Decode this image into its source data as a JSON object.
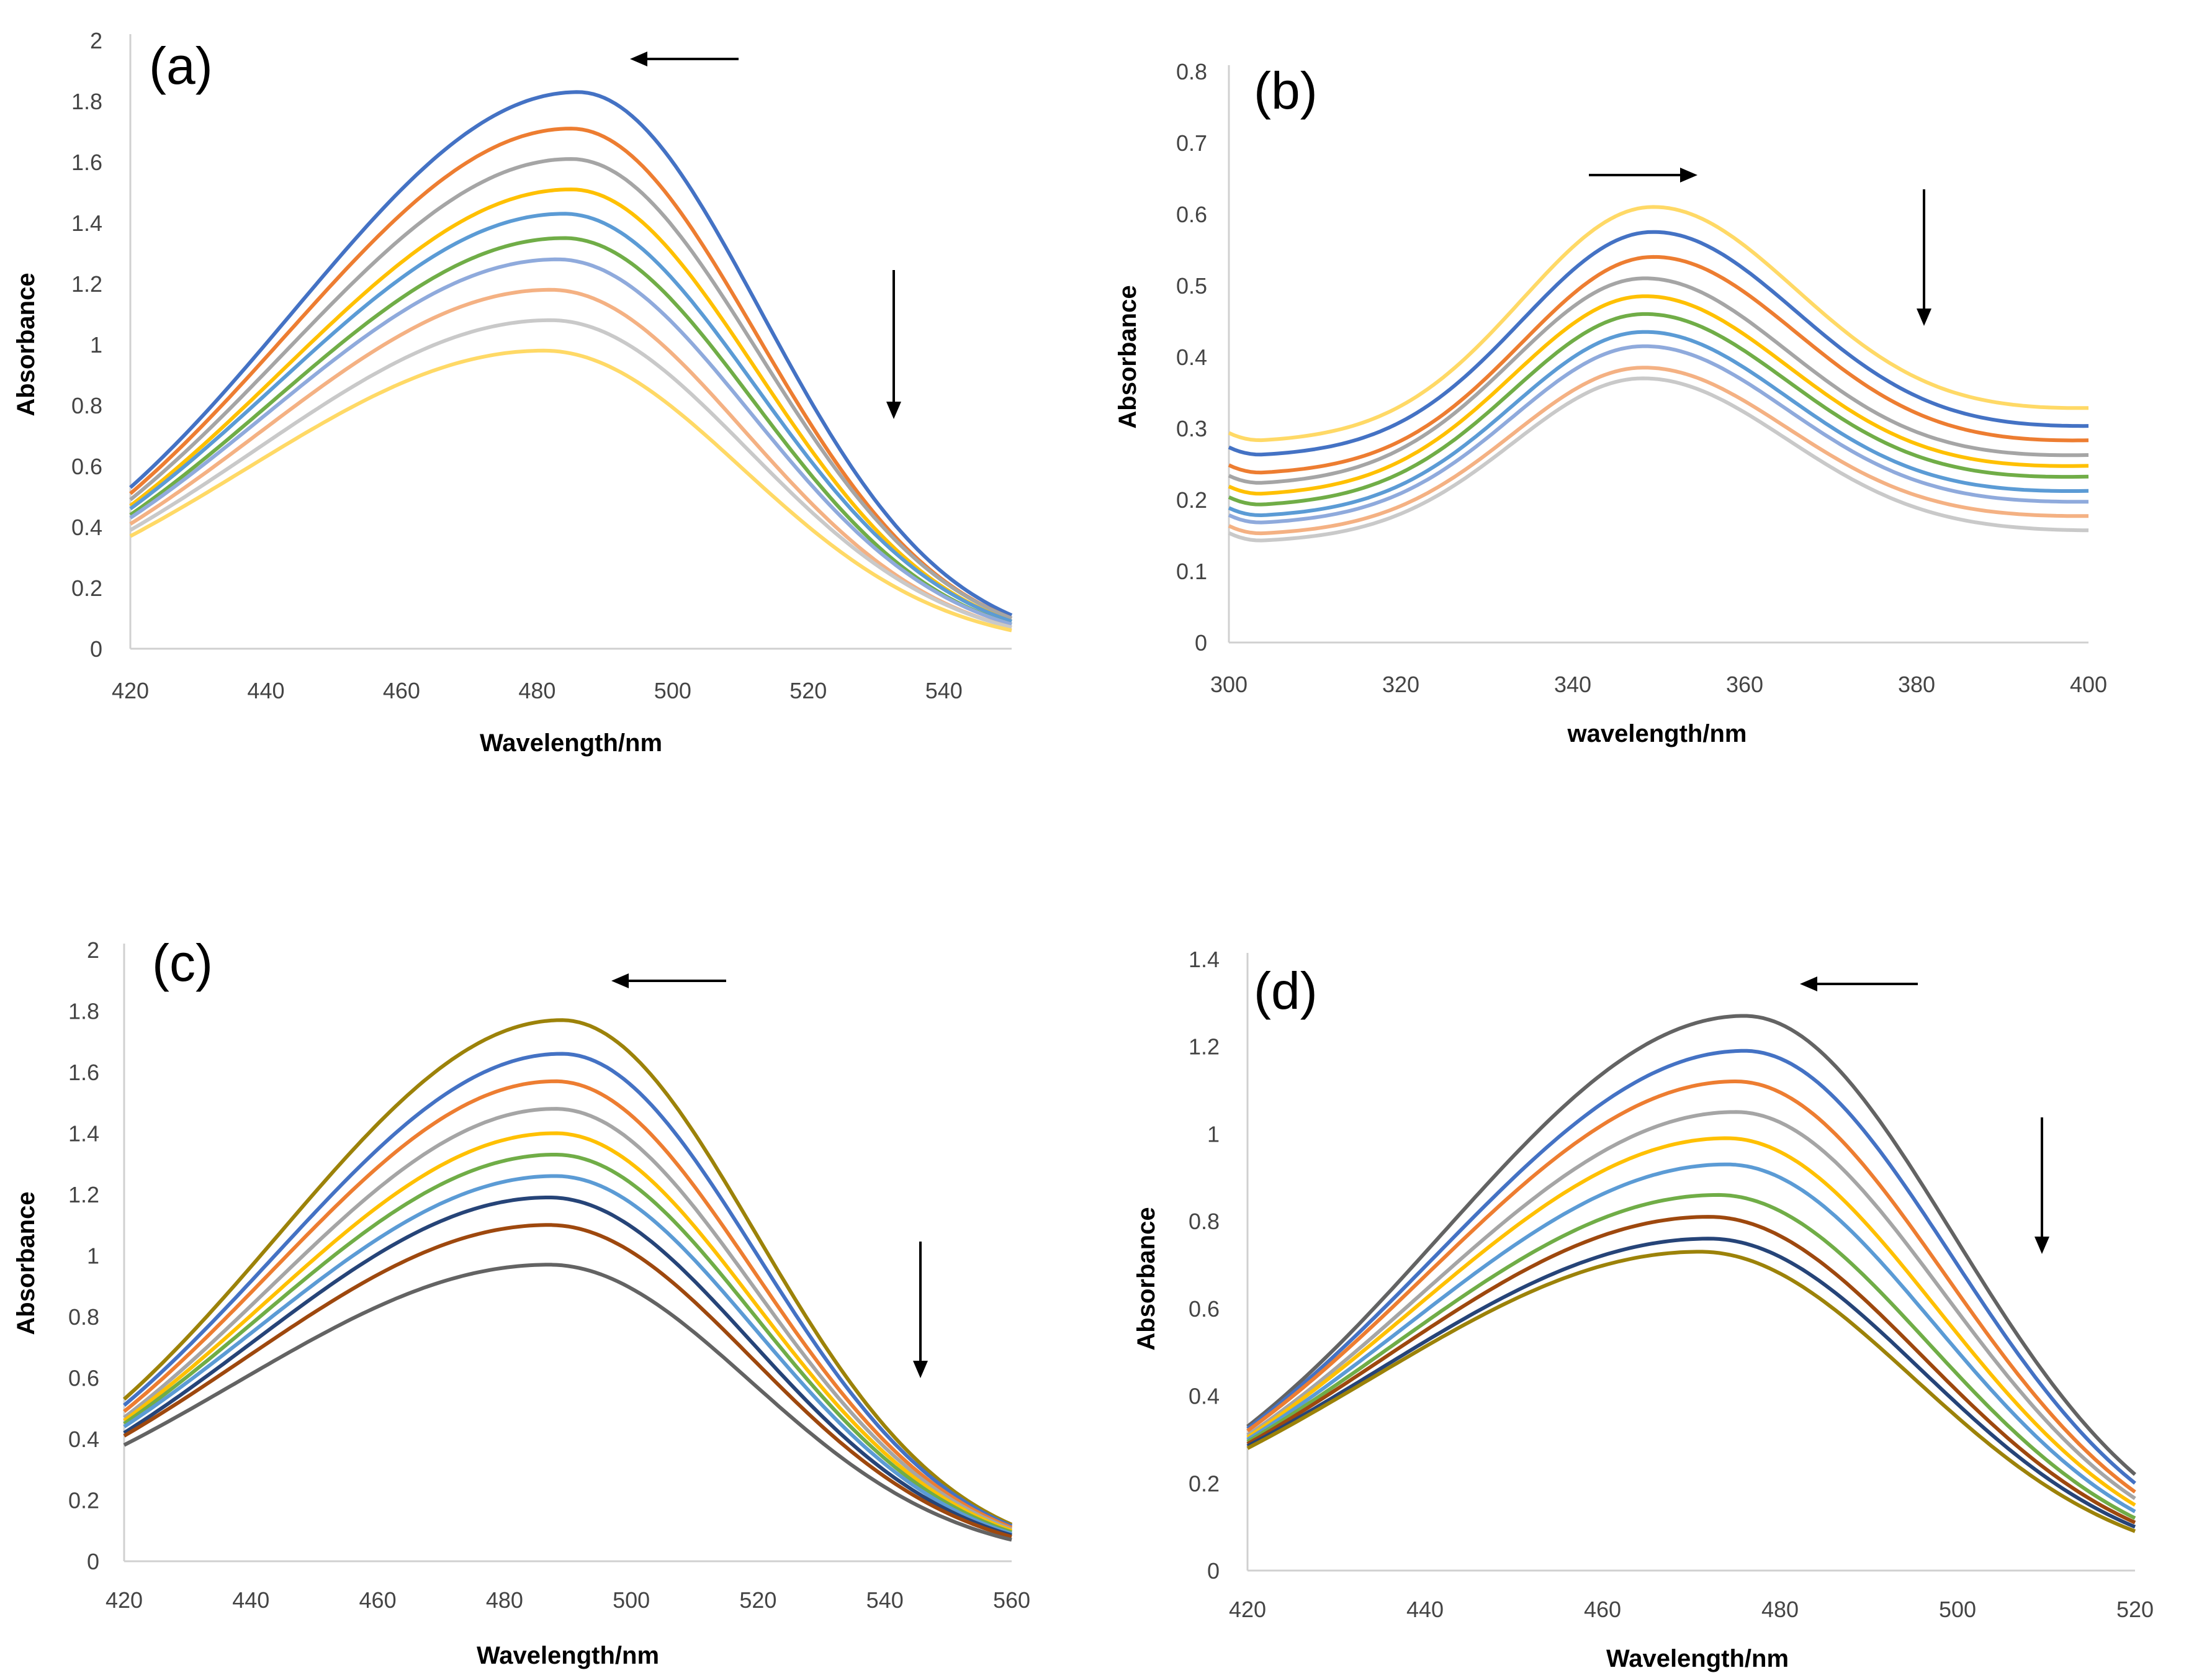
{
  "chart_data": [
    {
      "panel": "(a)",
      "type": "line",
      "xlabel": "Wavelength/nm",
      "ylabel": "Absorbance",
      "xlim": [
        420,
        550
      ],
      "ylim": [
        0,
        2
      ],
      "xticks": [
        "420",
        "440",
        "460",
        "480",
        "500",
        "520",
        "540"
      ],
      "yticks": [
        "0",
        "0.2",
        "0.4",
        "0.6",
        "0.8",
        "1",
        "1.2",
        "1.4",
        "1.6",
        "1.8",
        "2"
      ],
      "arrows": [
        {
          "direction": "left"
        },
        {
          "direction": "down"
        }
      ],
      "series": [
        {
          "color": "#4472c4",
          "peak_x": 486,
          "peak_y": 1.83,
          "y_at_420": 0.53,
          "y_at_550": 0.11
        },
        {
          "color": "#ed7d31",
          "peak_x": 485,
          "peak_y": 1.71,
          "y_at_420": 0.51,
          "y_at_550": 0.1
        },
        {
          "color": "#a5a5a5",
          "peak_x": 485,
          "peak_y": 1.61,
          "y_at_420": 0.49,
          "y_at_550": 0.1
        },
        {
          "color": "#ffc000",
          "peak_x": 485,
          "peak_y": 1.51,
          "y_at_420": 0.47,
          "y_at_550": 0.09
        },
        {
          "color": "#5b9bd5",
          "peak_x": 484,
          "peak_y": 1.43,
          "y_at_420": 0.46,
          "y_at_550": 0.09
        },
        {
          "color": "#70ad47",
          "peak_x": 484,
          "peak_y": 1.35,
          "y_at_420": 0.44,
          "y_at_550": 0.08
        },
        {
          "color": "#8faadc",
          "peak_x": 483,
          "peak_y": 1.28,
          "y_at_420": 0.43,
          "y_at_550": 0.08
        },
        {
          "color": "#f4b183",
          "peak_x": 482,
          "peak_y": 1.18,
          "y_at_420": 0.41,
          "y_at_550": 0.07
        },
        {
          "color": "#c9c9c9",
          "peak_x": 482,
          "peak_y": 1.08,
          "y_at_420": 0.39,
          "y_at_550": 0.07
        },
        {
          "color": "#ffd966",
          "peak_x": 481,
          "peak_y": 0.98,
          "y_at_420": 0.37,
          "y_at_550": 0.06
        }
      ]
    },
    {
      "panel": "(b)",
      "type": "line",
      "xlabel": "wavelength/nm",
      "ylabel": "Absorbance",
      "xlim": [
        300,
        400
      ],
      "ylim": [
        0,
        0.8
      ],
      "xticks": [
        "300",
        "320",
        "340",
        "360",
        "380",
        "400"
      ],
      "yticks": [
        "0",
        "0.1",
        "0.2",
        "0.3",
        "0.4",
        "0.5",
        "0.6",
        "0.7",
        "0.8"
      ],
      "arrows": [
        {
          "direction": "right"
        },
        {
          "direction": "down"
        }
      ],
      "series": [
        {
          "color": "#ffd966",
          "peak_x": 349,
          "peak_y": 0.61,
          "y_at_300": 0.28,
          "min_y": 0.28,
          "y_at_400": 0.355
        },
        {
          "color": "#4472c4",
          "peak_x": 349,
          "peak_y": 0.575,
          "y_at_300": 0.26,
          "min_y": 0.26,
          "y_at_400": 0.33
        },
        {
          "color": "#ed7d31",
          "peak_x": 349,
          "peak_y": 0.54,
          "y_at_300": 0.24,
          "min_y": 0.235,
          "y_at_400": 0.31
        },
        {
          "color": "#a5a5a5",
          "peak_x": 348,
          "peak_y": 0.51,
          "y_at_300": 0.225,
          "min_y": 0.22,
          "y_at_400": 0.29
        },
        {
          "color": "#ffc000",
          "peak_x": 348,
          "peak_y": 0.485,
          "y_at_300": 0.21,
          "min_y": 0.205,
          "y_at_400": 0.275
        },
        {
          "color": "#70ad47",
          "peak_x": 348,
          "peak_y": 0.46,
          "y_at_300": 0.195,
          "min_y": 0.19,
          "y_at_400": 0.26
        },
        {
          "color": "#5b9bd5",
          "peak_x": 348,
          "peak_y": 0.435,
          "y_at_300": 0.18,
          "min_y": 0.175,
          "y_at_400": 0.24
        },
        {
          "color": "#8faadc",
          "peak_x": 348,
          "peak_y": 0.415,
          "y_at_300": 0.17,
          "min_y": 0.165,
          "y_at_400": 0.225
        },
        {
          "color": "#f4b183",
          "peak_x": 348,
          "peak_y": 0.385,
          "y_at_300": 0.155,
          "min_y": 0.15,
          "y_at_400": 0.205
        },
        {
          "color": "#c9c9c9",
          "peak_x": 348,
          "peak_y": 0.37,
          "y_at_300": 0.145,
          "min_y": 0.14,
          "y_at_400": 0.185
        }
      ]
    },
    {
      "panel": "(c)",
      "type": "line",
      "xlabel": "Wavelength/nm",
      "ylabel": "Absorbance",
      "xlim": [
        420,
        560
      ],
      "ylim": [
        0,
        2
      ],
      "xticks": [
        "420",
        "440",
        "460",
        "480",
        "500",
        "520",
        "540",
        "560"
      ],
      "yticks": [
        "0",
        "0.2",
        "0.4",
        "0.6",
        "0.8",
        "1",
        "1.2",
        "1.4",
        "1.6",
        "1.8",
        "2"
      ],
      "arrows": [
        {
          "direction": "left"
        },
        {
          "direction": "down"
        }
      ],
      "series": [
        {
          "color": "#9c8209",
          "peak_x": 489,
          "peak_y": 1.77,
          "y_at_420": 0.53,
          "y_at_560": 0.12
        },
        {
          "color": "#4472c4",
          "peak_x": 489,
          "peak_y": 1.66,
          "y_at_420": 0.51,
          "y_at_560": 0.115
        },
        {
          "color": "#ed7d31",
          "peak_x": 488,
          "peak_y": 1.57,
          "y_at_420": 0.49,
          "y_at_560": 0.11
        },
        {
          "color": "#a5a5a5",
          "peak_x": 488,
          "peak_y": 1.48,
          "y_at_420": 0.47,
          "y_at_560": 0.105
        },
        {
          "color": "#ffc000",
          "peak_x": 488,
          "peak_y": 1.4,
          "y_at_420": 0.46,
          "y_at_560": 0.1
        },
        {
          "color": "#70ad47",
          "peak_x": 488,
          "peak_y": 1.33,
          "y_at_420": 0.45,
          "y_at_560": 0.095
        },
        {
          "color": "#5b9bd5",
          "peak_x": 488,
          "peak_y": 1.26,
          "y_at_420": 0.44,
          "y_at_560": 0.09
        },
        {
          "color": "#264478",
          "peak_x": 487,
          "peak_y": 1.19,
          "y_at_420": 0.42,
          "y_at_560": 0.085
        },
        {
          "color": "#9e480e",
          "peak_x": 487,
          "peak_y": 1.1,
          "y_at_420": 0.41,
          "y_at_560": 0.08
        },
        {
          "color": "#636363",
          "peak_x": 487,
          "peak_y": 0.97,
          "y_at_420": 0.38,
          "y_at_560": 0.07
        }
      ]
    },
    {
      "panel": "(d)",
      "type": "line",
      "xlabel": "Wavelength/nm",
      "ylabel": "Absorbance",
      "xlim": [
        420,
        520
      ],
      "ylim": [
        0,
        1.4
      ],
      "xticks": [
        "420",
        "440",
        "460",
        "480",
        "500",
        "520"
      ],
      "yticks": [
        "0",
        "0.2",
        "0.4",
        "0.6",
        "0.8",
        "1",
        "1.2",
        "1.4"
      ],
      "arrows": [
        {
          "direction": "left"
        },
        {
          "direction": "down"
        }
      ],
      "series": [
        {
          "color": "#636363",
          "peak_x": 476,
          "peak_y": 1.27,
          "y_at_420": 0.33,
          "y_at_520": 0.22
        },
        {
          "color": "#4472c4",
          "peak_x": 476,
          "peak_y": 1.19,
          "y_at_420": 0.325,
          "y_at_520": 0.2
        },
        {
          "color": "#ed7d31",
          "peak_x": 475,
          "peak_y": 1.12,
          "y_at_420": 0.32,
          "y_at_520": 0.18
        },
        {
          "color": "#a5a5a5",
          "peak_x": 475,
          "peak_y": 1.05,
          "y_at_420": 0.31,
          "y_at_520": 0.165
        },
        {
          "color": "#ffc000",
          "peak_x": 474,
          "peak_y": 0.99,
          "y_at_420": 0.305,
          "y_at_520": 0.15
        },
        {
          "color": "#5b9bd5",
          "peak_x": 474,
          "peak_y": 0.93,
          "y_at_420": 0.3,
          "y_at_520": 0.135
        },
        {
          "color": "#70ad47",
          "peak_x": 473,
          "peak_y": 0.86,
          "y_at_420": 0.295,
          "y_at_520": 0.12
        },
        {
          "color": "#9e480e",
          "peak_x": 472,
          "peak_y": 0.81,
          "y_at_420": 0.29,
          "y_at_520": 0.11
        },
        {
          "color": "#264478",
          "peak_x": 472,
          "peak_y": 0.76,
          "y_at_420": 0.285,
          "y_at_520": 0.1
        },
        {
          "color": "#9c8209",
          "peak_x": 471,
          "peak_y": 0.73,
          "y_at_420": 0.28,
          "y_at_520": 0.09
        }
      ]
    }
  ]
}
